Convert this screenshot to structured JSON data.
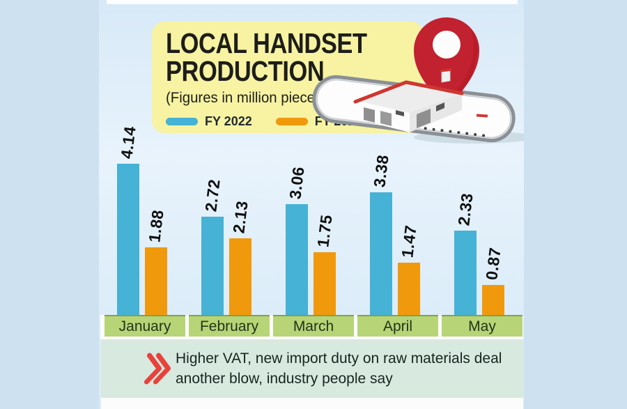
{
  "header": {
    "title_line1": "LOCAL HANDSET",
    "title_line2": "PRODUCTION",
    "subtitle": "(Figures in million pieces)",
    "legend": [
      {
        "label": "FY 2022",
        "color": "#45b2d6"
      },
      {
        "label": "FY 2023",
        "color": "#f0990d"
      }
    ]
  },
  "chart_data": {
    "type": "bar",
    "title": "Local handset production",
    "unit": "million pieces",
    "categories": [
      "January",
      "February",
      "March",
      "April",
      "May"
    ],
    "series": [
      {
        "name": "FY 2022",
        "color": "#45b2d6",
        "values": [
          4.14,
          2.72,
          3.06,
          3.38,
          2.33
        ]
      },
      {
        "name": "FY 2023",
        "color": "#f0990d",
        "values": [
          1.88,
          2.13,
          1.75,
          1.47,
          0.87
        ]
      }
    ],
    "ylim": [
      0,
      4.3
    ],
    "grid": false,
    "legend_position": "top-left",
    "value_labels": "rotated-vertical"
  },
  "footer": {
    "note_line1": "Higher VAT, new import duty on raw materials deal",
    "note_line2": "another blow, industry people say"
  },
  "illustration": {
    "icons": [
      "location-pin-icon",
      "smartphone-icon",
      "factory-icon"
    ],
    "pin_color": "#c2212f"
  },
  "colors": {
    "outer_bg": "#cde1f1",
    "card_bg": "#dfeefa",
    "header_bg": "#f7f3a2",
    "month_band": "#b7d577",
    "note_band": "#d8e9df",
    "chevron": "#e8423c",
    "text_dark": "#1d1d1b"
  }
}
